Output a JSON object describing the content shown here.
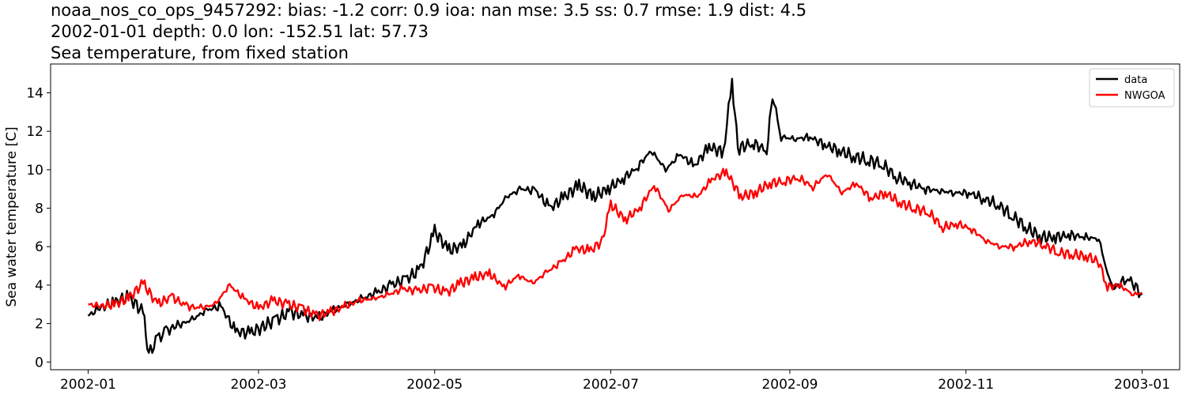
{
  "chart_data": {
    "type": "line",
    "title_lines": [
      "noaa_nos_co_ops_9457292: bias: -1.2  corr: 0.9  ioa: nan  mse: 3.5  ss: 0.7  rmse: 1.9  dist: 4.5",
      "2002-01-01 depth: 0.0 lon: -152.51 lat: 57.73",
      "Sea temperature, from fixed station"
    ],
    "xlabel": "",
    "ylabel": "Sea water temperature [C]",
    "xlim": [
      "2001-12-19",
      "2003-01-14"
    ],
    "ylim": [
      -0.4,
      15.5
    ],
    "x_ticks": [
      "2002-01",
      "2002-03",
      "2002-05",
      "2002-07",
      "2002-09",
      "2002-11",
      "2003-01"
    ],
    "y_ticks": [
      0,
      2,
      4,
      6,
      8,
      10,
      12,
      14
    ],
    "grid": false,
    "legend_position": "top-right",
    "series": [
      {
        "name": "data",
        "color": "#000000",
        "x": [
          "2002-01-01",
          "2002-01-05",
          "2002-01-10",
          "2002-01-15",
          "2002-01-20",
          "2002-01-22",
          "2002-01-25",
          "2002-01-28",
          "2002-02-01",
          "2002-02-06",
          "2002-02-11",
          "2002-02-16",
          "2002-02-21",
          "2002-02-26",
          "2002-03-02",
          "2002-03-07",
          "2002-03-12",
          "2002-03-17",
          "2002-03-22",
          "2002-03-27",
          "2002-04-01",
          "2002-04-06",
          "2002-04-11",
          "2002-04-16",
          "2002-04-21",
          "2002-04-26",
          "2002-05-01",
          "2002-05-06",
          "2002-05-11",
          "2002-05-16",
          "2002-05-21",
          "2002-05-26",
          "2002-05-31",
          "2002-06-05",
          "2002-06-10",
          "2002-06-15",
          "2002-06-20",
          "2002-06-25",
          "2002-06-30",
          "2002-07-05",
          "2002-07-10",
          "2002-07-15",
          "2002-07-20",
          "2002-07-25",
          "2002-07-30",
          "2002-08-04",
          "2002-08-09",
          "2002-08-12",
          "2002-08-14",
          "2002-08-19",
          "2002-08-24",
          "2002-08-26",
          "2002-08-29",
          "2002-09-03",
          "2002-09-08",
          "2002-09-13",
          "2002-09-18",
          "2002-09-23",
          "2002-09-28",
          "2002-10-03",
          "2002-10-08",
          "2002-10-13",
          "2002-10-18",
          "2002-10-23",
          "2002-10-28",
          "2002-11-02",
          "2002-11-07",
          "2002-11-12",
          "2002-11-17",
          "2002-11-22",
          "2002-11-27",
          "2002-12-02",
          "2002-12-07",
          "2002-12-12",
          "2002-12-17",
          "2002-12-20",
          "2002-12-22",
          "2002-12-27",
          "2003-01-01"
        ],
        "y": [
          2.4,
          2.8,
          3.1,
          3.4,
          2.6,
          0.4,
          1.2,
          1.6,
          1.9,
          2.2,
          2.7,
          2.9,
          1.6,
          1.5,
          1.8,
          2.2,
          2.6,
          2.4,
          2.3,
          2.7,
          3.0,
          3.3,
          3.6,
          4.0,
          4.3,
          4.8,
          6.8,
          5.8,
          6.1,
          7.2,
          7.6,
          8.6,
          9.0,
          8.9,
          8.0,
          8.6,
          9.2,
          8.6,
          9.0,
          9.5,
          10.1,
          11.0,
          10.0,
          10.8,
          10.2,
          11.2,
          10.9,
          14.6,
          11.1,
          11.4,
          11.0,
          13.9,
          11.7,
          11.6,
          11.7,
          11.3,
          11.0,
          10.7,
          10.5,
          10.3,
          9.6,
          9.3,
          9.0,
          8.9,
          8.8,
          8.8,
          8.5,
          8.2,
          7.6,
          7.0,
          6.5,
          6.5,
          6.6,
          6.5,
          6.4,
          4.6,
          3.8,
          4.4,
          3.5
        ]
      },
      {
        "name": "NWGOA",
        "color": "#ff0000",
        "x": [
          "2002-01-01",
          "2002-01-05",
          "2002-01-10",
          "2002-01-15",
          "2002-01-20",
          "2002-01-25",
          "2002-01-30",
          "2002-02-04",
          "2002-02-09",
          "2002-02-14",
          "2002-02-19",
          "2002-02-24",
          "2002-03-01",
          "2002-03-06",
          "2002-03-11",
          "2002-03-16",
          "2002-03-21",
          "2002-03-26",
          "2002-03-31",
          "2002-04-05",
          "2002-04-10",
          "2002-04-15",
          "2002-04-20",
          "2002-04-25",
          "2002-04-30",
          "2002-05-05",
          "2002-05-10",
          "2002-05-15",
          "2002-05-20",
          "2002-05-25",
          "2002-05-30",
          "2002-06-04",
          "2002-06-09",
          "2002-06-14",
          "2002-06-19",
          "2002-06-24",
          "2002-06-28",
          "2002-07-01",
          "2002-07-06",
          "2002-07-11",
          "2002-07-16",
          "2002-07-21",
          "2002-07-26",
          "2002-07-31",
          "2002-08-05",
          "2002-08-10",
          "2002-08-15",
          "2002-08-20",
          "2002-08-25",
          "2002-08-30",
          "2002-09-04",
          "2002-09-09",
          "2002-09-14",
          "2002-09-19",
          "2002-09-24",
          "2002-09-29",
          "2002-10-04",
          "2002-10-09",
          "2002-10-14",
          "2002-10-19",
          "2002-10-24",
          "2002-10-29",
          "2002-11-03",
          "2002-11-08",
          "2002-11-13",
          "2002-11-18",
          "2002-11-23",
          "2002-11-28",
          "2002-12-03",
          "2002-12-08",
          "2002-12-13",
          "2002-12-17",
          "2002-12-20",
          "2002-12-24",
          "2002-12-29",
          "2003-01-01"
        ],
        "y": [
          3.0,
          2.9,
          3.0,
          3.3,
          4.1,
          3.0,
          3.4,
          2.9,
          2.8,
          3.0,
          4.0,
          3.3,
          2.8,
          3.2,
          3.0,
          2.8,
          2.4,
          2.6,
          2.9,
          3.2,
          3.3,
          3.5,
          3.8,
          3.7,
          3.9,
          3.6,
          4.1,
          4.4,
          4.6,
          3.9,
          4.5,
          4.1,
          4.7,
          5.2,
          5.9,
          5.8,
          6.3,
          8.2,
          7.4,
          8.0,
          9.2,
          7.9,
          8.7,
          8.6,
          9.5,
          9.9,
          8.6,
          8.8,
          9.3,
          9.4,
          9.6,
          9.1,
          9.8,
          8.8,
          9.3,
          8.5,
          8.8,
          8.3,
          8.0,
          7.8,
          7.0,
          7.2,
          6.9,
          6.3,
          6.0,
          6.0,
          6.3,
          6.1,
          5.7,
          5.6,
          5.5,
          5.2,
          3.9,
          4.0,
          3.5,
          3.6
        ]
      }
    ]
  }
}
